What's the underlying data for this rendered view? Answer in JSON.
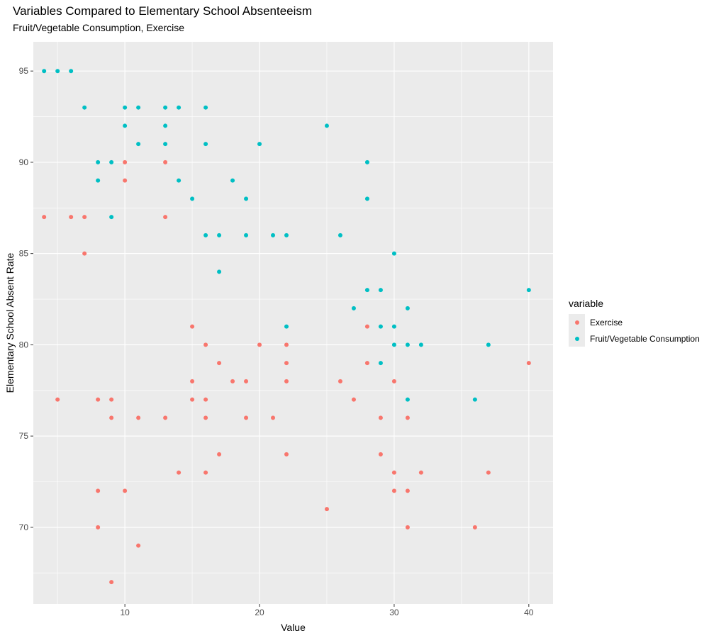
{
  "chart_data": {
    "type": "scatter",
    "title": "Variables Compared to Elementary School Absenteeism",
    "subtitle": "Fruit/Vegetable Consumption, Exercise",
    "xlabel": "Value",
    "ylabel": "Elementary School Absent Rate",
    "xlim": [
      3.2,
      41.8
    ],
    "ylim": [
      65.8,
      96.6
    ],
    "x_ticks": [
      10,
      20,
      30,
      40
    ],
    "y_ticks": [
      70,
      75,
      80,
      85,
      90,
      95
    ],
    "grid": true,
    "legend_title": "variable",
    "legend_position": "right",
    "series": [
      {
        "name": "Exercise",
        "color": "#F8766D",
        "points": [
          [
            4,
            87
          ],
          [
            5,
            77
          ],
          [
            6,
            87
          ],
          [
            7,
            87
          ],
          [
            7,
            85
          ],
          [
            8,
            77
          ],
          [
            8,
            72
          ],
          [
            8,
            70
          ],
          [
            9,
            77
          ],
          [
            9,
            76
          ],
          [
            9,
            67
          ],
          [
            10,
            90
          ],
          [
            10,
            89
          ],
          [
            10,
            72
          ],
          [
            11,
            76
          ],
          [
            11,
            69
          ],
          [
            13,
            90
          ],
          [
            13,
            87
          ],
          [
            13,
            76
          ],
          [
            14,
            73
          ],
          [
            15,
            81
          ],
          [
            15,
            78
          ],
          [
            15,
            77
          ],
          [
            16,
            80
          ],
          [
            16,
            77
          ],
          [
            16,
            76
          ],
          [
            16,
            73
          ],
          [
            17,
            79
          ],
          [
            17,
            74
          ],
          [
            18,
            78
          ],
          [
            19,
            78
          ],
          [
            19,
            76
          ],
          [
            20,
            80
          ],
          [
            21,
            76
          ],
          [
            22,
            80
          ],
          [
            22,
            79
          ],
          [
            22,
            78
          ],
          [
            22,
            74
          ],
          [
            25,
            71
          ],
          [
            26,
            78
          ],
          [
            27,
            77
          ],
          [
            28,
            81
          ],
          [
            28,
            79
          ],
          [
            29,
            76
          ],
          [
            29,
            74
          ],
          [
            30,
            78
          ],
          [
            30,
            73
          ],
          [
            30,
            72
          ],
          [
            31,
            76
          ],
          [
            31,
            72
          ],
          [
            31,
            70
          ],
          [
            32,
            73
          ],
          [
            36,
            70
          ],
          [
            37,
            73
          ],
          [
            40,
            79
          ]
        ]
      },
      {
        "name": "Fruit/Vegetable Consumption",
        "color": "#00BFC4",
        "points": [
          [
            4,
            95
          ],
          [
            5,
            95
          ],
          [
            6,
            95
          ],
          [
            7,
            93
          ],
          [
            8,
            90
          ],
          [
            8,
            89
          ],
          [
            9,
            90
          ],
          [
            9,
            87
          ],
          [
            10,
            93
          ],
          [
            10,
            92
          ],
          [
            11,
            93
          ],
          [
            11,
            91
          ],
          [
            13,
            93
          ],
          [
            13,
            92
          ],
          [
            13,
            91
          ],
          [
            14,
            93
          ],
          [
            14,
            89
          ],
          [
            15,
            88
          ],
          [
            16,
            93
          ],
          [
            16,
            91
          ],
          [
            16,
            86
          ],
          [
            17,
            86
          ],
          [
            17,
            84
          ],
          [
            18,
            89
          ],
          [
            19,
            88
          ],
          [
            19,
            86
          ],
          [
            20,
            91
          ],
          [
            21,
            86
          ],
          [
            22,
            86
          ],
          [
            22,
            81
          ],
          [
            25,
            92
          ],
          [
            26,
            86
          ],
          [
            27,
            82
          ],
          [
            28,
            90
          ],
          [
            28,
            88
          ],
          [
            28,
            83
          ],
          [
            29,
            83
          ],
          [
            29,
            81
          ],
          [
            29,
            79
          ],
          [
            30,
            85
          ],
          [
            30,
            81
          ],
          [
            30,
            80
          ],
          [
            31,
            82
          ],
          [
            31,
            80
          ],
          [
            31,
            77
          ],
          [
            32,
            80
          ],
          [
            36,
            77
          ],
          [
            37,
            80
          ],
          [
            40,
            83
          ]
        ]
      }
    ]
  }
}
